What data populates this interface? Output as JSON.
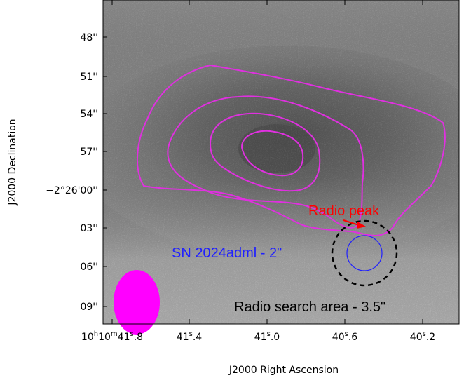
{
  "figure": {
    "x_axis_title": "J2000 Right Ascension",
    "y_axis_title": "J2000 Declination",
    "x_tick_labels": [
      {
        "main": "10",
        "sup1": "h",
        "mid": "10",
        "sup2": "m",
        "tail": "41",
        "sup3": "s",
        "end": ".8"
      },
      {
        "main": "41",
        "sup1": "s",
        "end": ".4"
      },
      {
        "main": "41",
        "sup1": "s",
        "end": ".0"
      },
      {
        "main": "40",
        "sup1": "s",
        "end": ".6"
      },
      {
        "main": "40",
        "sup1": "s",
        "end": ".2"
      }
    ],
    "y_tick_labels": [
      "48''",
      "51''",
      "54''",
      "57''",
      "−2°26'00''",
      "03''",
      "06''",
      "09''"
    ],
    "annotations": {
      "radio_peak": "Radio peak",
      "sn_label": "SN 2024adml - 2\"",
      "search_label": "Radio search area - 3.5\""
    },
    "colors": {
      "contour": "#e030e0",
      "beam": "#ff00ff",
      "radio_peak": "#ff0000",
      "sn_circle": "#2020ff",
      "search_circle": "#000000"
    }
  }
}
